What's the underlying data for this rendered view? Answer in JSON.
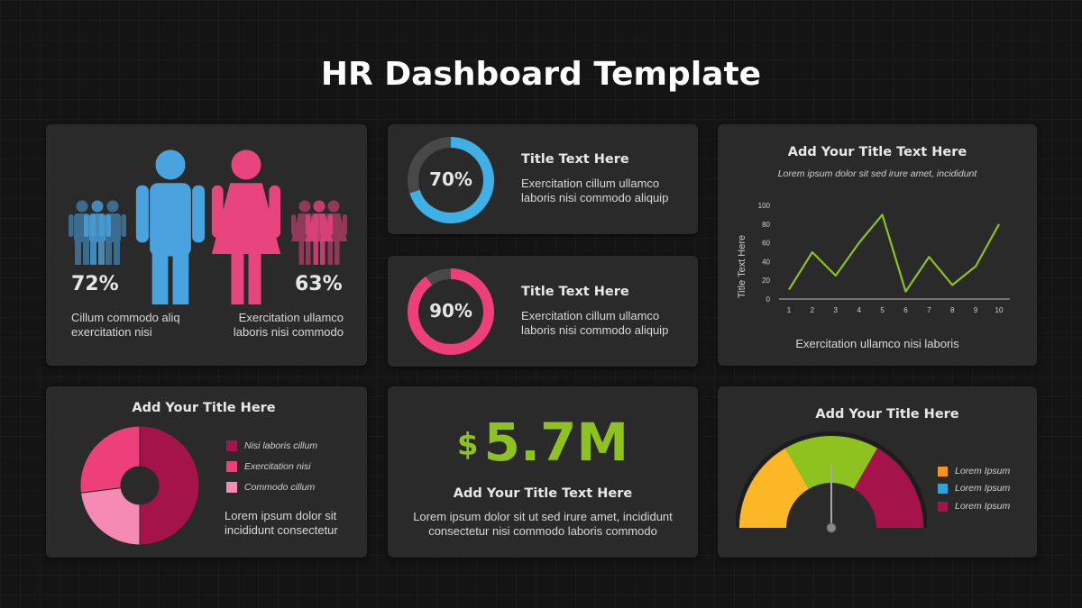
{
  "page": {
    "title": "HR Dashboard Template"
  },
  "people_card": {
    "male_pct": "72%",
    "female_pct": "63%",
    "left_text_1": "Cillum commodo aliq",
    "left_text_2": "exercitation nisi",
    "right_text_1": "Exercitation ullamco",
    "right_text_2": "laboris nisi commodo",
    "colors": {
      "male": "#4aa3df",
      "female": "#e8457e"
    }
  },
  "donut_cards": [
    {
      "value": 0.7,
      "label": "70%",
      "title": "Title Text Here",
      "text_1": "Exercitation cillum ullamco",
      "text_2": "laboris nisi commodo aliquip",
      "color": "#3eb0e6"
    },
    {
      "value": 0.9,
      "label": "90%",
      "title": "Title Text Here",
      "text_1": "Exercitation cillum ullamco",
      "text_2": "laboris nisi commodo aliquip",
      "color": "#ee3f7a"
    }
  ],
  "line_card": {
    "title": "Add Your Title Text Here",
    "subtitle": "Lorem ipsum dolor sit sed irure amet, incididunt",
    "caption": "Exercitation ullamco nisi laboris"
  },
  "chart_data": [
    {
      "type": "line",
      "title": "Add Your Title Text Here",
      "ylabel": "Title Text Here",
      "xlabel": "",
      "x": [
        1,
        2,
        3,
        4,
        5,
        6,
        7,
        8,
        9,
        10
      ],
      "y_ticks": [
        0,
        20,
        40,
        60,
        80,
        100
      ],
      "ylim": [
        0,
        100
      ],
      "series": [
        {
          "values": [
            10,
            50,
            25,
            60,
            90,
            8,
            45,
            15,
            35,
            80
          ],
          "color": "#8dc21f"
        }
      ],
      "grid": false
    },
    {
      "type": "pie",
      "title": "Add Your Title Here",
      "slices": [
        {
          "label": "Nisi laboris cillum",
          "value": 50,
          "color": "#a4134a"
        },
        {
          "label": "Commodo cillum",
          "value": 23,
          "color": "#f58bb4"
        },
        {
          "label": "Exercitation nisi",
          "value": 27,
          "color": "#ee3f7a"
        }
      ]
    }
  ],
  "pie_card": {
    "title": "Add Your Title Here",
    "legend": [
      {
        "label": "Nisi laboris cillum",
        "color": "#a4134a"
      },
      {
        "label": "Exercitation nisi",
        "color": "#ee3f7a"
      },
      {
        "label": "Commodo cillum",
        "color": "#f58bb4"
      }
    ],
    "text_1": "Lorem ipsum dolor sit",
    "text_2": "incididunt consectetur"
  },
  "kpi_card": {
    "currency": "$",
    "value": "5.7M",
    "title": "Add Your Title Text Here",
    "text_1": "Lorem ipsum dolor sit ut sed irure amet, incididunt",
    "text_2": "consectetur nisi commodo laboris commodo",
    "color": "#8dc21f"
  },
  "gauge_card": {
    "title": "Add Your Title Here",
    "segments": [
      {
        "color": "#fbb726"
      },
      {
        "color": "#8dc21f"
      },
      {
        "color": "#a4134a"
      }
    ],
    "needle_value": 0.5,
    "legend": [
      {
        "label": "Lorem Ipsum",
        "color": "#f7941d"
      },
      {
        "label": "Lorem Ipsum",
        "color": "#29a8e0"
      },
      {
        "label": "Lorem Ipsum",
        "color": "#a4134a"
      }
    ]
  }
}
